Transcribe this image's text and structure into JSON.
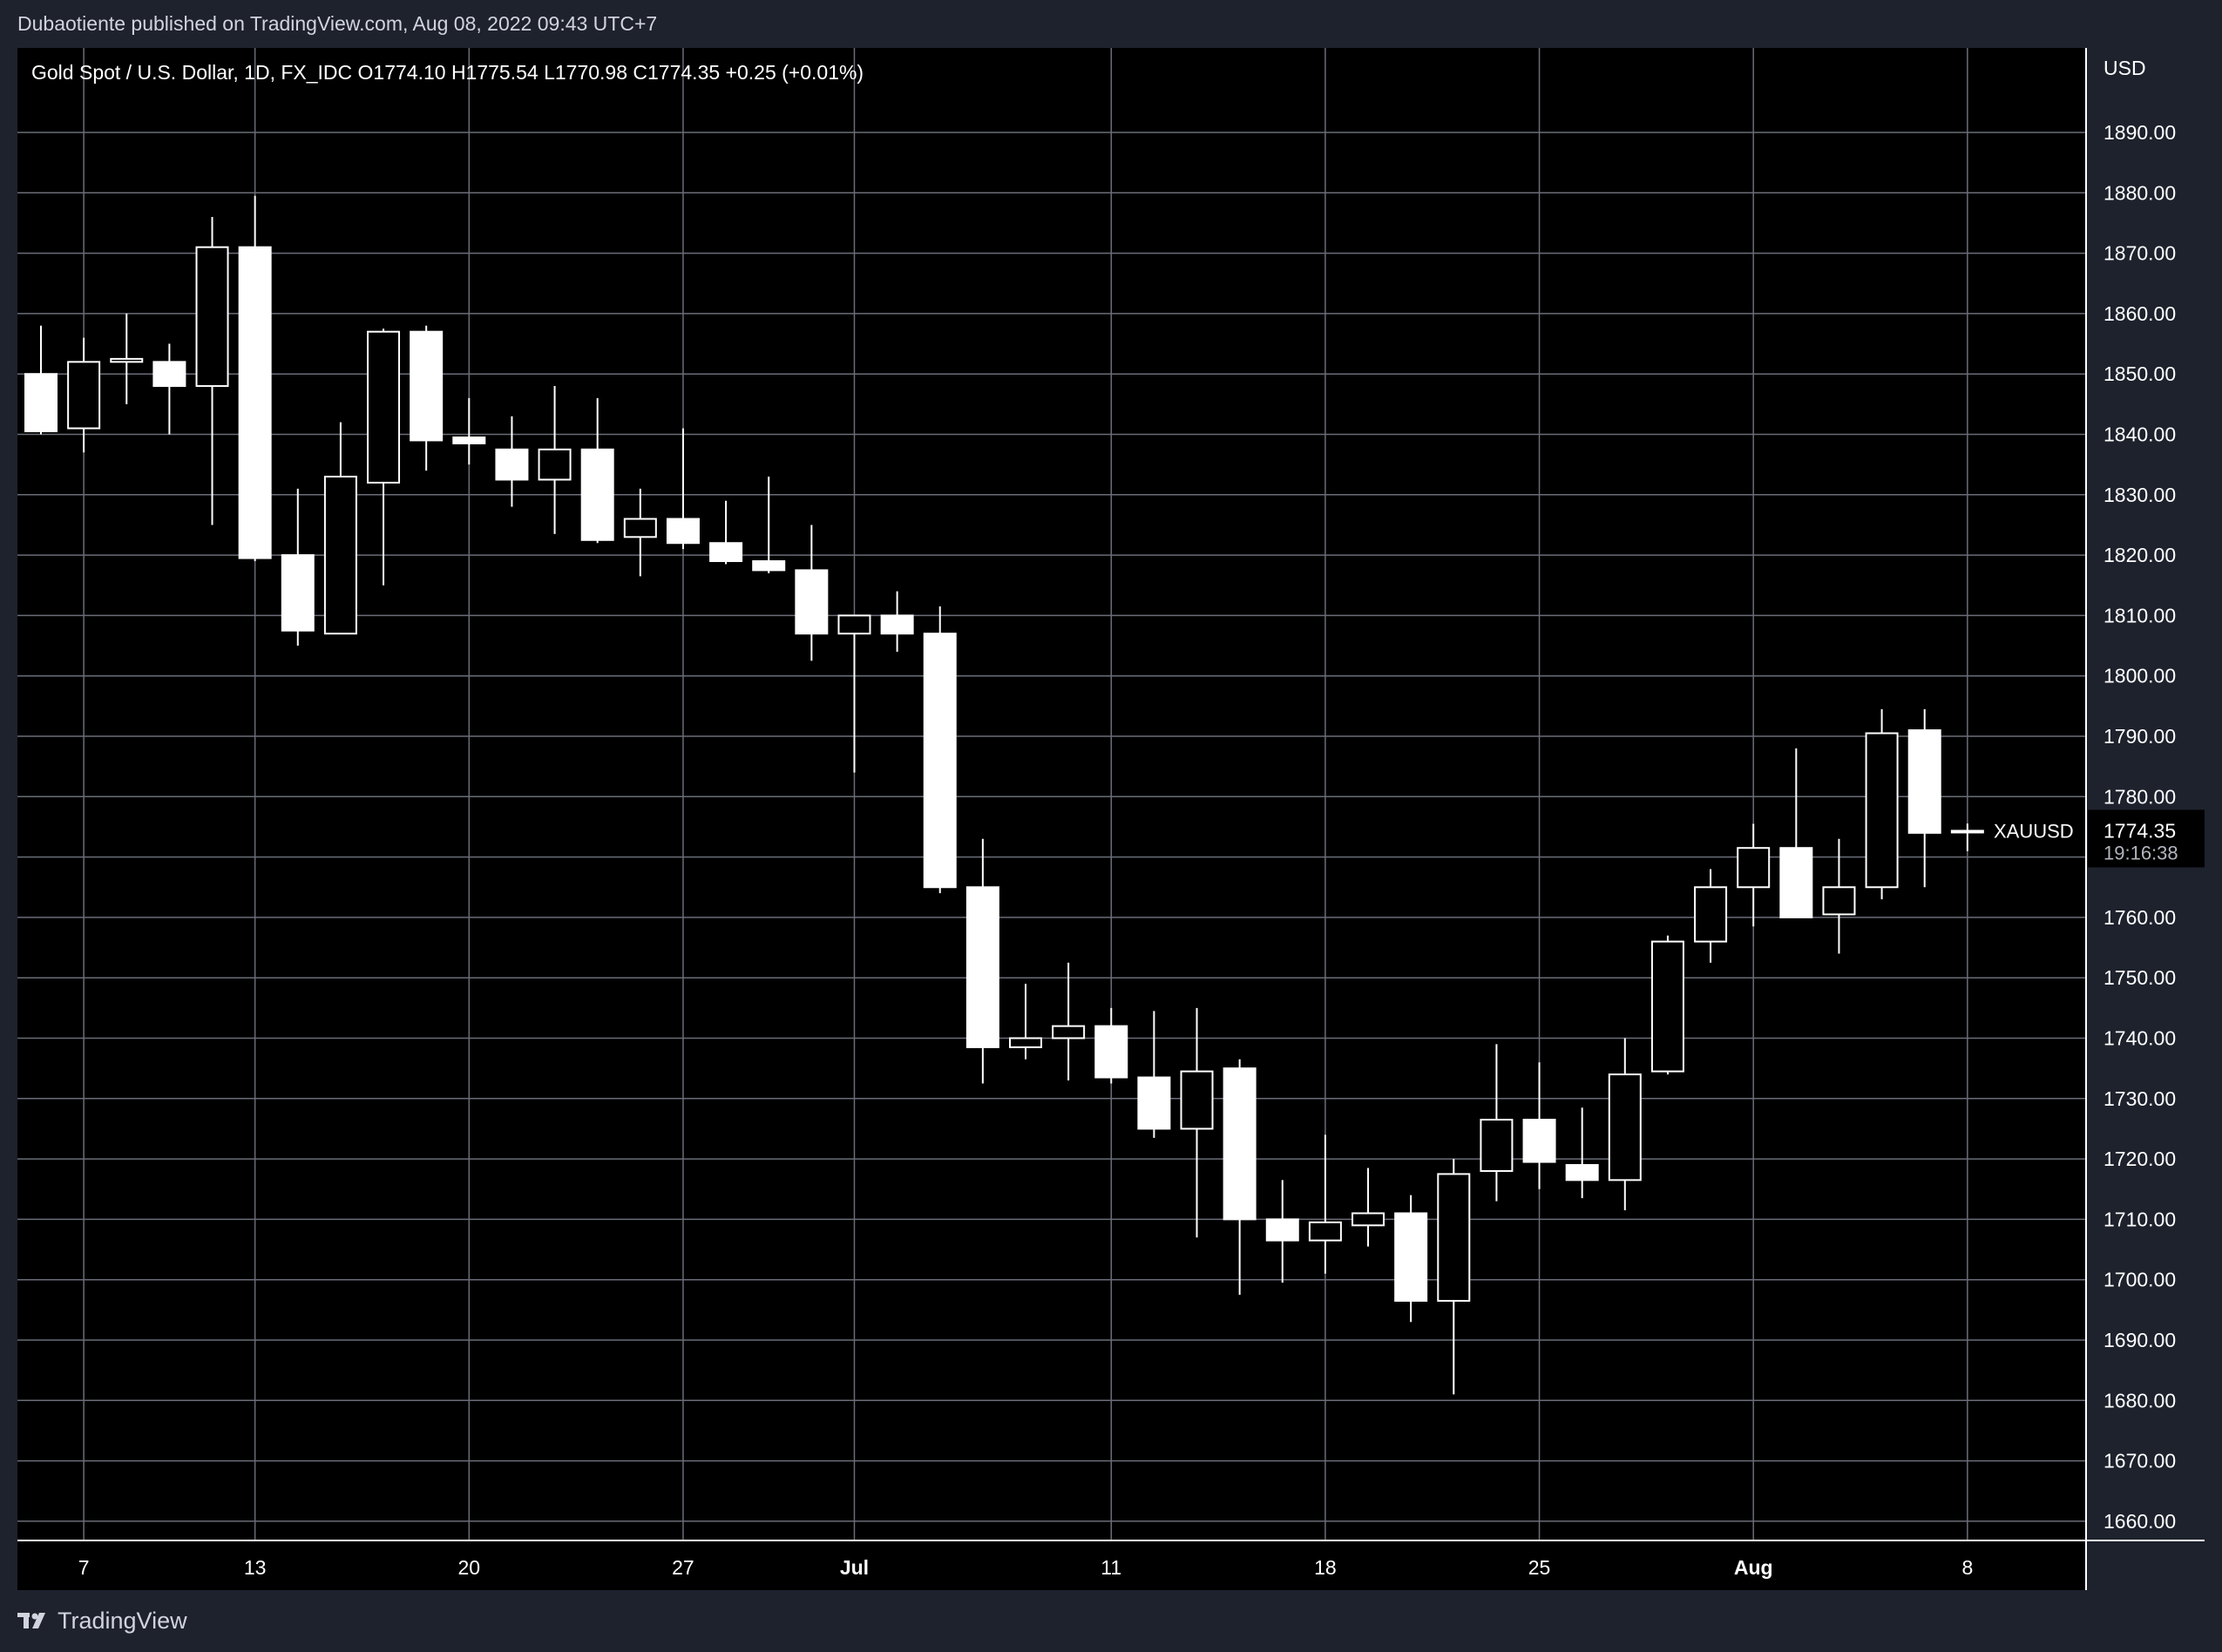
{
  "publisher": "Dubaotiente published on TradingView.com, Aug 08, 2022 09:43 UTC+7",
  "legend": "Gold Spot / U.S. Dollar, 1D, FX_IDC  O1774.10  H1775.54  L1770.98  C1774.35  +0.25 (+0.01%)",
  "footer": {
    "brand": "TradingView",
    "logo_icon": "tradingview-logo-icon"
  },
  "price_label": {
    "symbol": "XAUUSD",
    "price": "1774.35",
    "countdown": "19:16:38"
  },
  "colors": {
    "background": "#000000",
    "frame": "#1e222d",
    "grid": "#6a6d78",
    "candle": "#ffffff",
    "text": "#ffffff"
  },
  "chart_data": {
    "type": "candlestick",
    "title": "Gold Spot / U.S. Dollar, 1D, FX_IDC",
    "currency_label": "USD",
    "ylim": [
      1655,
      1901
    ],
    "y_ticks": [
      "1890.00",
      "1880.00",
      "1870.00",
      "1860.00",
      "1850.00",
      "1840.00",
      "1830.00",
      "1820.00",
      "1810.00",
      "1800.00",
      "1790.00",
      "1780.00",
      "1760.00",
      "1750.00",
      "1740.00",
      "1730.00",
      "1720.00",
      "1710.00",
      "1700.00",
      "1690.00",
      "1680.00",
      "1670.00",
      "1660.00"
    ],
    "x_ticks": [
      {
        "label": "7",
        "index": 1,
        "bold": false
      },
      {
        "label": "13",
        "index": 5,
        "bold": false
      },
      {
        "label": "20",
        "index": 10,
        "bold": false
      },
      {
        "label": "27",
        "index": 15,
        "bold": false
      },
      {
        "label": "Jul",
        "index": 19,
        "bold": true
      },
      {
        "label": "11",
        "index": 25,
        "bold": false
      },
      {
        "label": "18",
        "index": 30,
        "bold": false
      },
      {
        "label": "25",
        "index": 35,
        "bold": false
      },
      {
        "label": "Aug",
        "index": 40,
        "bold": true
      },
      {
        "label": "8",
        "index": 45,
        "bold": false
      }
    ],
    "grid": true,
    "candles": [
      {
        "date": "2022-06-06",
        "o": 1850.0,
        "h": 1858.0,
        "l": 1840.0,
        "c": 1840.5
      },
      {
        "date": "2022-06-07",
        "o": 1841.0,
        "h": 1856.0,
        "l": 1837.0,
        "c": 1852.0
      },
      {
        "date": "2022-06-08",
        "o": 1852.0,
        "h": 1860.0,
        "l": 1845.0,
        "c": 1852.5
      },
      {
        "date": "2022-06-09",
        "o": 1852.0,
        "h": 1855.0,
        "l": 1840.0,
        "c": 1848.0
      },
      {
        "date": "2022-06-10",
        "o": 1848.0,
        "h": 1876.0,
        "l": 1825.0,
        "c": 1871.0
      },
      {
        "date": "2022-06-13",
        "o": 1871.0,
        "h": 1879.5,
        "l": 1819.0,
        "c": 1819.5
      },
      {
        "date": "2022-06-14",
        "o": 1820.0,
        "h": 1831.0,
        "l": 1805.0,
        "c": 1807.5
      },
      {
        "date": "2022-06-15",
        "o": 1807.0,
        "h": 1842.0,
        "l": 1807.0,
        "c": 1833.0
      },
      {
        "date": "2022-06-16",
        "o": 1832.0,
        "h": 1857.5,
        "l": 1815.0,
        "c": 1857.0
      },
      {
        "date": "2022-06-17",
        "o": 1857.0,
        "h": 1858.0,
        "l": 1834.0,
        "c": 1839.0
      },
      {
        "date": "2022-06-20",
        "o": 1839.5,
        "h": 1846.0,
        "l": 1835.0,
        "c": 1838.5
      },
      {
        "date": "2022-06-21",
        "o": 1837.5,
        "h": 1843.0,
        "l": 1828.0,
        "c": 1832.5
      },
      {
        "date": "2022-06-22",
        "o": 1832.5,
        "h": 1848.0,
        "l": 1823.5,
        "c": 1837.5
      },
      {
        "date": "2022-06-23",
        "o": 1837.5,
        "h": 1846.0,
        "l": 1822.0,
        "c": 1822.5
      },
      {
        "date": "2022-06-24",
        "o": 1823.0,
        "h": 1831.0,
        "l": 1816.5,
        "c": 1826.0
      },
      {
        "date": "2022-06-27",
        "o": 1826.0,
        "h": 1841.0,
        "l": 1821.0,
        "c": 1822.0
      },
      {
        "date": "2022-06-28",
        "o": 1822.0,
        "h": 1829.0,
        "l": 1818.5,
        "c": 1819.0
      },
      {
        "date": "2022-06-29",
        "o": 1819.0,
        "h": 1833.0,
        "l": 1817.0,
        "c": 1817.5
      },
      {
        "date": "2022-06-30",
        "o": 1817.5,
        "h": 1825.0,
        "l": 1802.5,
        "c": 1807.0
      },
      {
        "date": "2022-07-01",
        "o": 1807.0,
        "h": 1810.0,
        "l": 1784.0,
        "c": 1810.0
      },
      {
        "date": "2022-07-04",
        "o": 1810.0,
        "h": 1814.0,
        "l": 1804.0,
        "c": 1807.0
      },
      {
        "date": "2022-07-05",
        "o": 1807.0,
        "h": 1811.5,
        "l": 1764.0,
        "c": 1765.0
      },
      {
        "date": "2022-07-06",
        "o": 1765.0,
        "h": 1773.0,
        "l": 1732.5,
        "c": 1738.5
      },
      {
        "date": "2022-07-07",
        "o": 1738.5,
        "h": 1749.0,
        "l": 1736.5,
        "c": 1740.0
      },
      {
        "date": "2022-07-08",
        "o": 1740.0,
        "h": 1752.5,
        "l": 1733.0,
        "c": 1742.0
      },
      {
        "date": "2022-07-11",
        "o": 1742.0,
        "h": 1745.0,
        "l": 1732.5,
        "c": 1733.5
      },
      {
        "date": "2022-07-12",
        "o": 1733.5,
        "h": 1744.5,
        "l": 1723.5,
        "c": 1725.0
      },
      {
        "date": "2022-07-13",
        "o": 1725.0,
        "h": 1745.0,
        "l": 1707.0,
        "c": 1734.5
      },
      {
        "date": "2022-07-14",
        "o": 1735.0,
        "h": 1736.5,
        "l": 1697.5,
        "c": 1710.0
      },
      {
        "date": "2022-07-15",
        "o": 1710.0,
        "h": 1716.5,
        "l": 1699.5,
        "c": 1706.5
      },
      {
        "date": "2022-07-18",
        "o": 1706.5,
        "h": 1724.0,
        "l": 1701.0,
        "c": 1709.5
      },
      {
        "date": "2022-07-19",
        "o": 1709.0,
        "h": 1718.5,
        "l": 1705.5,
        "c": 1711.0
      },
      {
        "date": "2022-07-20",
        "o": 1711.0,
        "h": 1714.0,
        "l": 1693.0,
        "c": 1696.5
      },
      {
        "date": "2022-07-21",
        "o": 1696.5,
        "h": 1720.0,
        "l": 1681.0,
        "c": 1717.5
      },
      {
        "date": "2022-07-22",
        "o": 1718.0,
        "h": 1739.0,
        "l": 1713.0,
        "c": 1726.5
      },
      {
        "date": "2022-07-25",
        "o": 1726.5,
        "h": 1736.0,
        "l": 1715.0,
        "c": 1719.5
      },
      {
        "date": "2022-07-26",
        "o": 1719.0,
        "h": 1728.5,
        "l": 1713.5,
        "c": 1716.5
      },
      {
        "date": "2022-07-27",
        "o": 1716.5,
        "h": 1740.0,
        "l": 1711.5,
        "c": 1734.0
      },
      {
        "date": "2022-07-28",
        "o": 1734.5,
        "h": 1757.0,
        "l": 1734.0,
        "c": 1756.0
      },
      {
        "date": "2022-07-29",
        "o": 1756.0,
        "h": 1768.0,
        "l": 1752.5,
        "c": 1765.0
      },
      {
        "date": "2022-08-01",
        "o": 1765.0,
        "h": 1775.5,
        "l": 1758.5,
        "c": 1771.5
      },
      {
        "date": "2022-08-02",
        "o": 1771.5,
        "h": 1788.0,
        "l": 1760.0,
        "c": 1760.0
      },
      {
        "date": "2022-08-03",
        "o": 1760.5,
        "h": 1773.0,
        "l": 1754.0,
        "c": 1765.0
      },
      {
        "date": "2022-08-04",
        "o": 1765.0,
        "h": 1794.5,
        "l": 1763.0,
        "c": 1790.5
      },
      {
        "date": "2022-08-05",
        "o": 1791.0,
        "h": 1794.5,
        "l": 1765.0,
        "c": 1774.0
      },
      {
        "date": "2022-08-08",
        "o": 1774.1,
        "h": 1775.54,
        "l": 1770.98,
        "c": 1774.35
      }
    ]
  }
}
